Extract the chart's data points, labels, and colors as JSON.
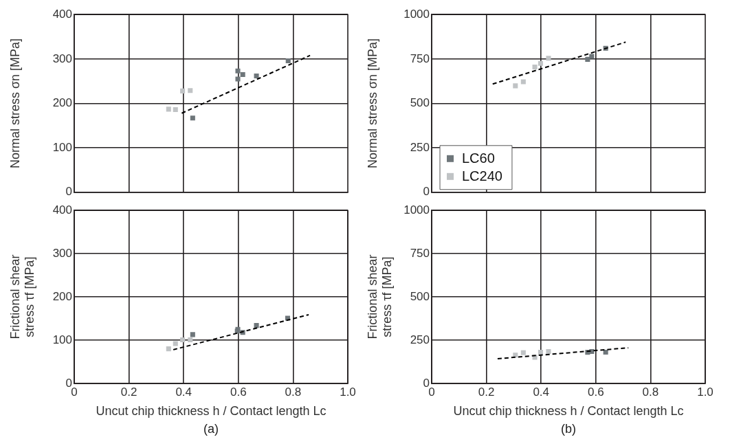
{
  "chart_data": [
    {
      "type": "scatter",
      "ylabel": "Normal stress σn [MPa]",
      "xlim": [
        0,
        1
      ],
      "xticks": [
        0.2,
        0.4,
        0.6,
        0.8
      ],
      "ylim": [
        0,
        400
      ],
      "yticks": [
        0,
        100,
        200,
        300,
        400
      ],
      "grid": true,
      "tick_labels": "y",
      "marker": "square",
      "series": [
        {
          "color": "#6e767a",
          "x": [
            0.433,
            0.598,
            0.616,
            0.598,
            0.666,
            0.782
          ],
          "values": [
            167,
            273,
            265,
            255,
            262,
            296
          ]
        },
        {
          "color": "#c0c3c5",
          "x": [
            0.396,
            0.424,
            0.345,
            0.37
          ],
          "values": [
            228,
            229,
            187,
            186
          ]
        },
        {
          "type": "line",
          "color": "#000000",
          "line_style": "dashed",
          "marker": "none",
          "x": [
            0.393,
            0.862
          ],
          "values": [
            178,
            308
          ]
        }
      ]
    },
    {
      "type": "scatter",
      "ylabel": "Normal stress σn [MPa]",
      "xlim": [
        0,
        1
      ],
      "xticks": [
        0.2,
        0.4,
        0.6,
        0.8
      ],
      "ylim": [
        0,
        1000
      ],
      "yticks": [
        0,
        250,
        500,
        750,
        1000
      ],
      "grid": true,
      "tick_labels": "y",
      "marker": "square",
      "legend": "bottom left",
      "series": [
        {
          "name": "LC60",
          "color": "#6e767a",
          "x": [
            0.57,
            0.585,
            0.636
          ],
          "values": [
            748,
            765,
            810
          ]
        },
        {
          "name": "LC240",
          "color": "#c0c3c5",
          "x": [
            0.306,
            0.335,
            0.377,
            0.398,
            0.427
          ],
          "values": [
            599,
            622,
            705,
            725,
            754
          ]
        },
        {
          "type": "line",
          "color": "#000000",
          "line_style": "dashed",
          "marker": "none",
          "x": [
            0.223,
            0.709
          ],
          "values": [
            609,
            845
          ]
        }
      ]
    },
    {
      "type": "scatter",
      "xlabel": "Uncut chip thickness h / Contact length Lc",
      "ylabel": "Frictional shear\nstress τf [MPa]",
      "annotations": [
        "(a)"
      ],
      "xlim": [
        0,
        1
      ],
      "xticks": [
        0,
        0.2,
        0.4,
        0.6,
        0.8,
        {
          "value": 1,
          "label": "1.0"
        }
      ],
      "ylim": [
        0,
        400
      ],
      "yticks": [
        0,
        100,
        200,
        300,
        400
      ],
      "grid": true,
      "marker": "square",
      "series": [
        {
          "color": "#6e767a",
          "x": [
            0.433,
            0.598,
            0.596,
            0.616,
            0.666,
            0.78
          ],
          "values": [
            113,
            125,
            121,
            118,
            134,
            151
          ]
        },
        {
          "color": "#c0c3c5",
          "x": [
            0.345,
            0.37,
            0.396,
            0.424
          ],
          "values": [
            80,
            92,
            101,
            101
          ]
        },
        {
          "type": "line",
          "color": "#000000",
          "line_style": "dashed",
          "marker": "none",
          "x": [
            0.362,
            0.857
          ],
          "values": [
            78,
            159
          ]
        }
      ]
    },
    {
      "type": "scatter",
      "xlabel": "Uncut chip thickness h / Contact length Lc",
      "ylabel": "Frictional shear\nstress τf [MPa]",
      "annotations": [
        "(b)"
      ],
      "xlim": [
        0,
        1
      ],
      "xticks": [
        0,
        0.2,
        0.4,
        0.6,
        0.8,
        {
          "value": 1,
          "label": "1.0"
        }
      ],
      "ylim": [
        0,
        1000
      ],
      "yticks": [
        0,
        250,
        500,
        750,
        1000
      ],
      "grid": true,
      "marker": "square",
      "series": [
        {
          "color": "#6e767a",
          "x": [
            0.57,
            0.585,
            0.636
          ],
          "values": [
            180,
            185,
            181
          ]
        },
        {
          "color": "#c0c3c5",
          "x": [
            0.306,
            0.335,
            0.377,
            0.398,
            0.427
          ],
          "values": [
            164,
            178,
            151,
            181,
            185
          ]
        },
        {
          "type": "line",
          "color": "#000000",
          "line_style": "dashed",
          "marker": "none",
          "x": [
            0.241,
            0.719
          ],
          "values": [
            143,
            206
          ]
        }
      ]
    }
  ]
}
